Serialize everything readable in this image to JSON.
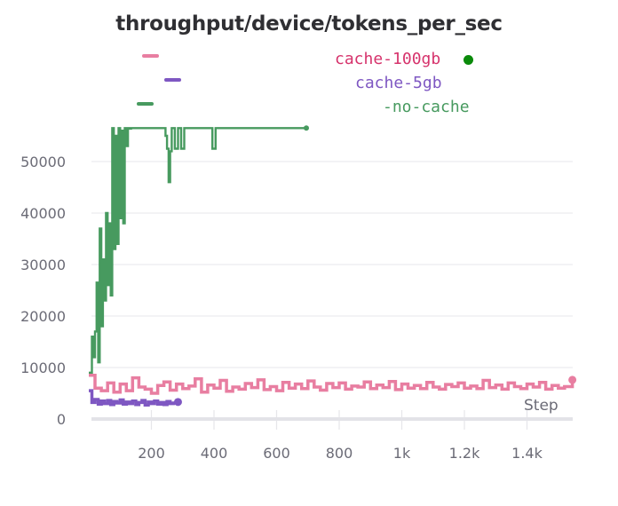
{
  "chart_data": {
    "type": "line",
    "title": "throughput/device/tokens_per_sec",
    "xlabel": "Step",
    "ylabel": "",
    "xlim": [
      0,
      1550
    ],
    "ylim": [
      0,
      58000
    ],
    "grid": true,
    "legend_position": "top",
    "y_ticks": [
      0,
      10000,
      20000,
      30000,
      40000,
      50000
    ],
    "y_tick_labels": [
      "0",
      "10000",
      "20000",
      "30000",
      "40000",
      "50000"
    ],
    "x_ticks": [
      200,
      400,
      600,
      800,
      1000,
      1200,
      1400
    ],
    "x_tick_labels": [
      "200",
      "400",
      "600",
      "800",
      "1k",
      "1.2k",
      "1.4k"
    ],
    "series": [
      {
        "name": "cache-100gb",
        "color": "#e87ea1",
        "label_color": "#d6336c",
        "x": [
          0,
          20,
          40,
          60,
          80,
          100,
          120,
          140,
          160,
          180,
          200,
          220,
          240,
          260,
          280,
          300,
          320,
          340,
          360,
          380,
          400,
          420,
          440,
          460,
          480,
          500,
          520,
          540,
          560,
          580,
          600,
          620,
          640,
          660,
          680,
          700,
          720,
          740,
          760,
          780,
          800,
          820,
          840,
          860,
          880,
          900,
          920,
          940,
          960,
          980,
          1000,
          1020,
          1040,
          1060,
          1080,
          1100,
          1120,
          1140,
          1160,
          1180,
          1200,
          1220,
          1240,
          1260,
          1280,
          1300,
          1320,
          1340,
          1360,
          1380,
          1400,
          1420,
          1440,
          1460,
          1480,
          1500,
          1520,
          1545
        ],
        "y": [
          8500,
          6000,
          5500,
          7000,
          5200,
          6800,
          5500,
          8000,
          6200,
          5800,
          5000,
          6500,
          7200,
          5600,
          6800,
          5900,
          6400,
          7800,
          5200,
          6600,
          6000,
          7500,
          5400,
          6200,
          5800,
          6900,
          6100,
          7600,
          5700,
          6300,
          5500,
          7100,
          6000,
          6800,
          5900,
          7400,
          6200,
          5600,
          6900,
          6100,
          7000,
          5800,
          6400,
          6200,
          7200,
          5900,
          6600,
          6100,
          7300,
          5700,
          6800,
          6000,
          6500,
          5900,
          7100,
          6200,
          5800,
          6700,
          6300,
          7000,
          6000,
          6400,
          5900,
          7500,
          6100,
          6600,
          5800,
          7000,
          6300,
          5900,
          6800,
          6200,
          7100,
          5800,
          6500,
          6000,
          6300,
          7600
        ]
      },
      {
        "name": "cache-5gb",
        "color": "#7e57c2",
        "label_color": "#7e57c2",
        "x": [
          0,
          10,
          20,
          30,
          40,
          50,
          60,
          70,
          80,
          90,
          100,
          110,
          120,
          130,
          140,
          150,
          160,
          170,
          180,
          190,
          200,
          210,
          220,
          230,
          240,
          250,
          260,
          270,
          285
        ],
        "y": [
          5500,
          3200,
          3800,
          2900,
          3500,
          3000,
          3600,
          2800,
          3400,
          3100,
          3700,
          2900,
          3300,
          3000,
          3500,
          2800,
          3200,
          3600,
          2700,
          3300,
          3000,
          3500,
          2900,
          3200,
          2800,
          3400,
          3000,
          3100,
          3300
        ]
      },
      {
        "name": "no-cache",
        "color": "#479a5f",
        "label_color": "#479a5f",
        "x": [
          0,
          10,
          15,
          20,
          25,
          30,
          35,
          40,
          45,
          50,
          55,
          60,
          65,
          70,
          75,
          80,
          85,
          90,
          95,
          100,
          105,
          110,
          115,
          120,
          125,
          130,
          135,
          140,
          145,
          150,
          200,
          240,
          245,
          250,
          255,
          260,
          265,
          270,
          275,
          280,
          285,
          290,
          295,
          300,
          305,
          390,
          395,
          400,
          405,
          410,
          500,
          600,
          695
        ],
        "y": [
          9000,
          16000,
          12000,
          17000,
          26500,
          11000,
          37000,
          18000,
          31000,
          23000,
          40000,
          26000,
          38000,
          24000,
          56500,
          33000,
          55000,
          34000,
          56500,
          39000,
          56000,
          38000,
          56500,
          53000,
          56500,
          56400,
          56500,
          56500,
          56500,
          56500,
          56500,
          56500,
          55000,
          52500,
          46000,
          52000,
          56500,
          56500,
          52500,
          52500,
          56500,
          56500,
          52500,
          52500,
          56500,
          56500,
          52500,
          52500,
          56500,
          56500,
          56500,
          56500,
          56500
        ]
      }
    ]
  },
  "legend": {
    "items": [
      {
        "label": "cache-100gb",
        "color": "#e87ea1",
        "text_color": "#d6336c"
      },
      {
        "label": "cache-5gb",
        "color": "#7e57c2",
        "text_color": "#7e57c2"
      },
      {
        "label": "-no-cache",
        "color": "#479a5f",
        "text_color": "#479a5f"
      }
    ],
    "status_dot_color": "#0a8a0a"
  }
}
